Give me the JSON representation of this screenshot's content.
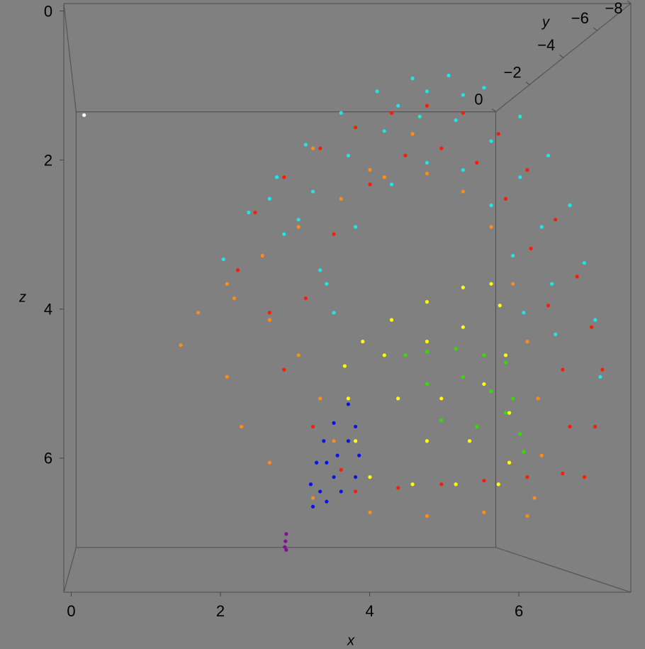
{
  "chart_data": {
    "type": "scatter3d",
    "xlabel": "x",
    "ylabel": "y",
    "zlabel": "z",
    "xlim": [
      -0.1,
      7.5
    ],
    "ylim": [
      -8,
      0
    ],
    "zlim": [
      -0.1,
      7.8
    ],
    "xticks": [
      0,
      2,
      4,
      6
    ],
    "yticks": [
      0,
      {
        "value": -2,
        "label": "−2"
      },
      {
        "value": -4,
        "label": "−4"
      },
      {
        "value": -6,
        "label": "−6"
      },
      {
        "value": -8,
        "label": "−8"
      }
    ],
    "zticks": [
      0,
      2,
      4,
      6
    ],
    "series": [
      {
        "color": "#ff8c14",
        "x": [
          1.5,
          1.74,
          2.14,
          2.63,
          3.13,
          3.72,
          4.32,
          4.91,
          5.41,
          5.8,
          6.1,
          6.3,
          6.45,
          6.5,
          6.4,
          2.14,
          2.34,
          2.73,
          3.33,
          4.12,
          4.91,
          5.7,
          6.3,
          2.24,
          2.73,
          3.13,
          3.43,
          3.62,
          3.33,
          4.12,
          4.71
        ],
        "y": [
          -7,
          -7,
          -7,
          -7,
          -7,
          -7,
          -7,
          -7,
          -7,
          -7,
          -7,
          -7,
          -7,
          -7,
          -7,
          -7,
          -7,
          -7,
          -7,
          -7,
          -7,
          -7,
          -7,
          -7,
          -7,
          -7,
          -7,
          -7,
          -7,
          -7,
          -7
        ],
        "z": [
          4.45,
          4.0,
          3.6,
          3.21,
          2.81,
          2.42,
          2.12,
          2.07,
          2.32,
          2.81,
          3.6,
          4.4,
          5.19,
          5.98,
          6.57,
          4.89,
          5.58,
          6.08,
          6.57,
          6.77,
          6.82,
          6.77,
          6.82,
          3.8,
          4.1,
          4.59,
          5.19,
          5.78,
          1.72,
          2.02,
          1.52
        ]
      },
      {
        "color": "#ff1a00",
        "x": [
          2.29,
          2.53,
          2.93,
          3.43,
          3.92,
          4.42,
          4.91,
          5.41,
          5.9,
          6.3,
          6.69,
          6.99,
          7.19,
          7.34,
          7.24,
          7.09,
          3.23,
          3.62,
          4.12,
          4.61,
          5.11,
          5.6,
          6.0,
          6.35,
          6.59,
          6.79,
          6.89,
          3.92,
          4.51,
          5.11,
          5.7,
          6.3,
          6.79,
          2.73,
          2.93,
          3.33,
          3.72
        ],
        "y": [
          -7,
          -7,
          -7,
          -7,
          -7,
          -7,
          -7,
          -7,
          -7,
          -7,
          -7,
          -7,
          -7,
          -7,
          -7,
          -7,
          -7,
          -7,
          -7,
          -7,
          -7,
          -7,
          -7,
          -7,
          -7,
          -7,
          -7,
          -7,
          -7,
          -7,
          -7,
          -7,
          -7,
          -7,
          -7,
          -7,
          -7
        ],
        "z": [
          3.41,
          2.61,
          2.12,
          1.72,
          1.43,
          1.23,
          1.13,
          1.23,
          1.52,
          2.02,
          2.71,
          3.5,
          4.2,
          4.79,
          5.58,
          6.28,
          3.8,
          2.91,
          2.22,
          1.82,
          1.72,
          1.92,
          2.42,
          3.11,
          3.9,
          4.79,
          5.58,
          6.48,
          6.43,
          6.38,
          6.33,
          6.28,
          6.23,
          4.0,
          4.79,
          5.58,
          6.18
        ]
      },
      {
        "color": "#1ee6e6",
        "x": [
          2.09,
          2.44,
          2.83,
          3.23,
          3.72,
          4.22,
          4.71,
          5.21,
          5.7,
          6.2,
          6.59,
          6.89,
          7.09,
          7.24,
          7.31,
          2.93,
          3.33,
          3.82,
          4.32,
          4.81,
          5.31,
          5.8,
          6.2,
          6.5,
          6.64,
          6.69,
          3.52,
          3.92,
          4.42,
          4.91,
          5.41,
          5.8,
          6.1,
          6.25,
          2.73,
          3.13,
          3.43,
          3.62,
          4.91,
          5.41,
          4.51
        ],
        "y": [
          -7,
          -7,
          -7,
          -7,
          -7,
          -7,
          -7,
          -7,
          -7,
          -7,
          -7,
          -7,
          -7,
          -7,
          -7,
          -7,
          -7,
          -7,
          -7,
          -7,
          -7,
          -7,
          -7,
          -7,
          -7,
          -7,
          -7,
          -7,
          -7,
          -7,
          -7,
          -7,
          -7,
          -7,
          -7,
          -7,
          -7,
          -7,
          -7,
          -7,
          -7
        ],
        "z": [
          3.26,
          2.61,
          2.12,
          1.67,
          1.23,
          0.93,
          0.75,
          0.71,
          0.88,
          1.28,
          1.82,
          2.51,
          3.31,
          4.1,
          4.89,
          2.91,
          2.32,
          1.82,
          1.48,
          1.28,
          1.33,
          1.62,
          2.12,
          2.81,
          3.6,
          4.3,
          3.6,
          2.81,
          2.22,
          1.92,
          2.02,
          2.51,
          3.21,
          4.0,
          2.42,
          2.71,
          3.41,
          4.0,
          0.93,
          0.98,
          1.13
        ]
      },
      {
        "color": "#ffff00",
        "x": [
          3.77,
          4.02,
          4.42,
          4.91,
          5.41,
          5.8,
          5.92,
          6.0,
          6.05,
          6.05,
          3.82,
          3.92,
          4.12,
          4.71,
          5.31,
          5.9,
          4.32,
          4.91,
          5.41,
          4.51,
          5.11,
          5.7,
          4.91,
          5.5
        ],
        "y": [
          -7,
          -7,
          -7,
          -7,
          -7,
          -7,
          -7,
          -7,
          -7,
          -7,
          -7,
          -7,
          -7,
          -7,
          -7,
          -7,
          -7,
          -7,
          -7,
          -7,
          -7,
          -7,
          -7,
          -7
        ],
        "z": [
          4.74,
          4.4,
          4.1,
          3.85,
          3.65,
          3.6,
          3.9,
          4.59,
          5.39,
          6.08,
          5.19,
          5.78,
          6.28,
          6.38,
          6.38,
          6.38,
          4.59,
          4.4,
          4.2,
          5.19,
          5.19,
          4.99,
          5.78,
          5.78
        ]
      },
      {
        "color": "#33dd00",
        "x": [
          4.61,
          4.91,
          5.31,
          5.7,
          6.0,
          6.1,
          6.2,
          6.25,
          4.91,
          5.41,
          5.8,
          5.11,
          5.6,
          6.0
        ],
        "y": [
          -7,
          -7,
          -7,
          -7,
          -7,
          -7,
          -7,
          -7,
          -7,
          -7,
          -7,
          -7,
          -7,
          -7
        ],
        "z": [
          4.59,
          4.54,
          4.5,
          4.59,
          4.69,
          5.19,
          5.68,
          5.93,
          4.99,
          4.89,
          5.09,
          5.49,
          5.58,
          5.39
        ]
      },
      {
        "color": "#0a14e6",
        "x": [
          3.82,
          3.92,
          3.97,
          3.92,
          3.72,
          3.52,
          3.33,
          3.3,
          3.38,
          3.48,
          3.62,
          3.52,
          3.67,
          3.62,
          3.82,
          3.43
        ],
        "y": [
          -7,
          -7,
          -7,
          -7,
          -7,
          -7,
          -7,
          -7,
          -7,
          -7,
          -7,
          -7,
          -7,
          -7,
          -7,
          -7
        ],
        "z": [
          5.27,
          5.58,
          5.98,
          6.28,
          6.48,
          6.62,
          6.69,
          6.38,
          6.08,
          5.78,
          5.53,
          6.08,
          5.98,
          6.28,
          5.78,
          6.48
        ]
      },
      {
        "color": "#8a0a9a",
        "x": [
          2.96,
          2.95,
          2.94,
          2.96
        ],
        "y": [
          -7,
          -7,
          -7,
          -7
        ],
        "z": [
          7.07,
          7.17,
          7.25,
          7.29
        ]
      },
      {
        "color": "#ffffff",
        "x": [
          0.16
        ],
        "y": [
          -7
        ],
        "z": [
          1.26
        ]
      }
    ]
  }
}
